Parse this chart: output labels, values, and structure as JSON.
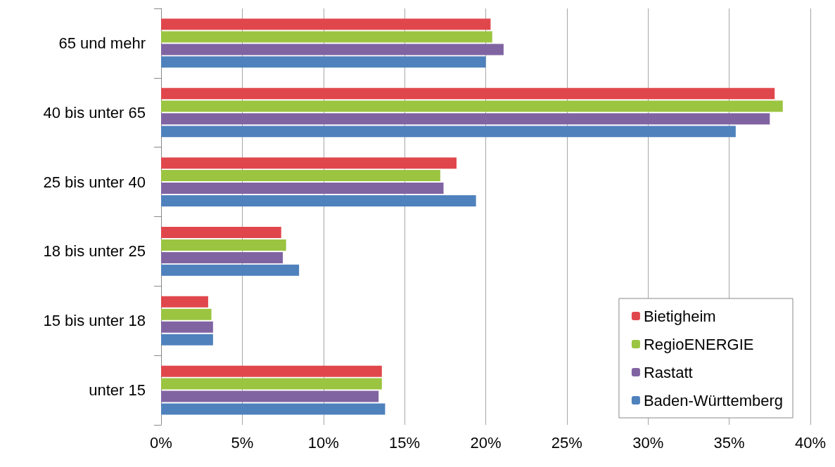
{
  "chart_data": {
    "type": "bar",
    "orientation": "horizontal",
    "categories": [
      "65 und mehr",
      "40 bis unter 65",
      "25 bis unter 40",
      "18 bis unter 25",
      "15 bis unter 18",
      "unter 15"
    ],
    "series": [
      {
        "name": "Bietigheim",
        "color": "#e0474c",
        "values": [
          20.3,
          37.8,
          18.2,
          7.4,
          2.9,
          13.6
        ]
      },
      {
        "name": "RegioENERGIE",
        "color": "#9bc440",
        "values": [
          20.4,
          38.3,
          17.2,
          7.7,
          3.1,
          13.6
        ]
      },
      {
        "name": "Rastatt",
        "color": "#8064a2",
        "values": [
          21.1,
          37.5,
          17.4,
          7.5,
          3.2,
          13.4
        ]
      },
      {
        "name": "Baden-Württemberg",
        "color": "#4f81bd",
        "values": [
          20.0,
          35.4,
          19.4,
          8.5,
          3.2,
          13.8
        ]
      }
    ],
    "xlim": [
      0,
      40
    ],
    "xticks": [
      {
        "value": 0,
        "label": "0%"
      },
      {
        "value": 5,
        "label": "5%"
      },
      {
        "value": 10,
        "label": "10%"
      },
      {
        "value": 15,
        "label": "15%"
      },
      {
        "value": 20,
        "label": "20%"
      },
      {
        "value": 25,
        "label": "25%"
      },
      {
        "value": 30,
        "label": "30%"
      },
      {
        "value": 35,
        "label": "35%"
      },
      {
        "value": 40,
        "label": "40%"
      }
    ],
    "grid": "x",
    "legend": "bottom right"
  }
}
